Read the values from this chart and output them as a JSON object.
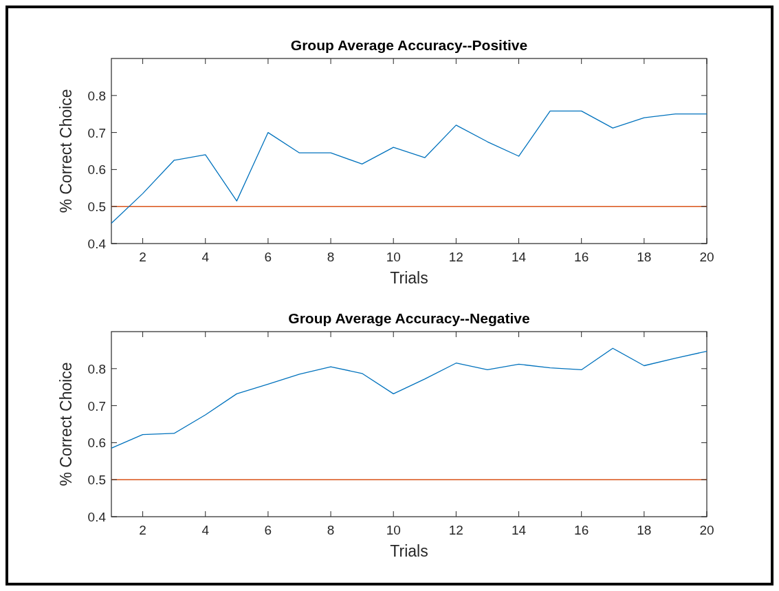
{
  "chart_data": [
    {
      "type": "line",
      "title": "Group Average Accuracy--Positive",
      "xlabel": "Trials",
      "ylabel": "% Correct Choice",
      "x": [
        1,
        2,
        3,
        4,
        5,
        6,
        7,
        8,
        9,
        10,
        11,
        12,
        13,
        14,
        15,
        16,
        17,
        18,
        19,
        20
      ],
      "series": [
        {
          "color": "#0072bd",
          "values": [
            0.455,
            0.535,
            0.625,
            0.64,
            0.515,
            0.7,
            0.645,
            0.645,
            0.615,
            0.66,
            0.632,
            0.72,
            0.675,
            0.636,
            0.758,
            0.758,
            0.712,
            0.74,
            0.75,
            0.75
          ]
        }
      ],
      "xlim": [
        1,
        20
      ],
      "xticks": [
        2,
        4,
        6,
        8,
        10,
        12,
        14,
        16,
        18,
        20
      ],
      "ylim": [
        0.4,
        0.9
      ],
      "yticks": [
        0.4,
        0.5,
        0.6,
        0.7,
        0.8
      ],
      "ref_lines": [
        {
          "axis": "y",
          "value": 0.5,
          "color": "#d95319"
        }
      ]
    },
    {
      "type": "line",
      "title": "Group Average Accuracy--Negative",
      "xlabel": "Trials",
      "ylabel": "% Correct Choice",
      "x": [
        1,
        2,
        3,
        4,
        5,
        6,
        7,
        8,
        9,
        10,
        11,
        12,
        13,
        14,
        15,
        16,
        17,
        18,
        19,
        20
      ],
      "series": [
        {
          "color": "#0072bd",
          "values": [
            0.585,
            0.622,
            0.625,
            0.675,
            0.732,
            0.758,
            0.785,
            0.805,
            0.787,
            0.732,
            0.772,
            0.815,
            0.797,
            0.812,
            0.802,
            0.797,
            0.855,
            0.808,
            0.828,
            0.847
          ]
        }
      ],
      "xlim": [
        1,
        20
      ],
      "xticks": [
        2,
        4,
        6,
        8,
        10,
        12,
        14,
        16,
        18,
        20
      ],
      "ylim": [
        0.4,
        0.9
      ],
      "yticks": [
        0.4,
        0.5,
        0.6,
        0.7,
        0.8
      ],
      "ref_lines": [
        {
          "axis": "y",
          "value": 0.5,
          "color": "#d95319"
        }
      ]
    }
  ]
}
